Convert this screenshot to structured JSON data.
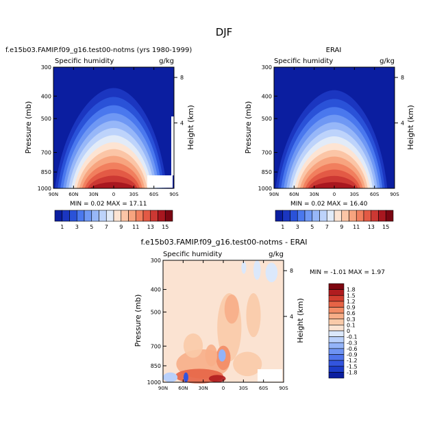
{
  "title": "DJF",
  "colors": {
    "abs_scale": [
      "#0b1ea0",
      "#1b36c0",
      "#2a52d8",
      "#4a78ee",
      "#6f98f4",
      "#97b7f8",
      "#bdd3fb",
      "#e2ebf8",
      "#fde4d3",
      "#fbc5a6",
      "#f7a47f",
      "#f17f5e",
      "#e35a45",
      "#cc3833",
      "#a8171f",
      "#7a0612"
    ],
    "diff_scale": [
      "#0b1ea0",
      "#1d3cc8",
      "#3355de",
      "#4f74ec",
      "#6e93f3",
      "#93b3f8",
      "#b9d0fb",
      "#dbe8fb",
      "#fbe3d2",
      "#f9caa9",
      "#f7ae88",
      "#f28c66",
      "#e66446",
      "#d23e2f",
      "#b01c1f",
      "#7e0610"
    ]
  },
  "panels": [
    {
      "title": "f.e15b03.FAMIP.f09_g16.test00-notms (yrs 1980-1999)",
      "left_label": "Specific humidity",
      "right_label": "g/kg",
      "stats": "MIN =   0.02  MAX =   17.11"
    },
    {
      "title": "ERAI",
      "left_label": "Specific humidity",
      "right_label": "g/kg",
      "stats": "MIN =   0.02  MAX =   16.40"
    },
    {
      "title": "f.e15b03.FAMIP.f09_g16.test00-notms - ERAI",
      "left_label": "Specific humidity",
      "right_label": "g/kg",
      "stats": "MIN =  -1.01   MAX =    1.97"
    }
  ],
  "chart_data": [
    {
      "type": "heatmap",
      "title": "f.e15b03.FAMIP.f09_g16.test00-notms (yrs 1980-1999)",
      "variable": "Specific humidity",
      "units": "g/kg",
      "xlabel": "",
      "ylabel": "Pressure (mb)",
      "y2label": "Height (km)",
      "x_ticks": [
        "90N",
        "60N",
        "30N",
        "0",
        "30S",
        "60S",
        "90S"
      ],
      "y_ticks": [
        300,
        400,
        500,
        700,
        850,
        1000
      ],
      "y2_ticks": [
        8,
        4
      ],
      "min": 0.02,
      "max": 17.11,
      "colorbar_labels": [
        "1",
        "3",
        "5",
        "7",
        "9",
        "11",
        "13",
        "15"
      ]
    },
    {
      "type": "heatmap",
      "title": "ERAI",
      "variable": "Specific humidity",
      "units": "g/kg",
      "xlabel": "",
      "ylabel": "Pressure (mb)",
      "y2label": "Height (km)",
      "x_ticks": [
        "90N",
        "60N",
        "30N",
        "0",
        "30S",
        "60S",
        "90S"
      ],
      "y_ticks": [
        300,
        400,
        500,
        700,
        850,
        1000
      ],
      "y2_ticks": [
        8,
        4
      ],
      "min": 0.02,
      "max": 16.4,
      "colorbar_labels": [
        "1",
        "3",
        "5",
        "7",
        "9",
        "11",
        "13",
        "15"
      ]
    },
    {
      "type": "heatmap",
      "title": "f.e15b03.FAMIP.f09_g16.test00-notms - ERAI",
      "variable": "Specific humidity",
      "units": "g/kg",
      "xlabel": "",
      "ylabel": "Pressure (mb)",
      "y2label": "Height (km)",
      "x_ticks": [
        "90N",
        "60N",
        "30N",
        "0",
        "30S",
        "60S",
        "90S"
      ],
      "y_ticks": [
        300,
        400,
        500,
        700,
        850,
        1000
      ],
      "y2_ticks": [
        8,
        4
      ],
      "min": -1.01,
      "max": 1.97,
      "colorbar_labels": [
        "1.8",
        "1.5",
        "1.2",
        "0.9",
        "0.6",
        "0.3",
        "0.1",
        "0",
        "-0.1",
        "-0.3",
        "-0.6",
        "-0.9",
        "-1.2",
        "-1.5",
        "-1.8"
      ]
    }
  ]
}
